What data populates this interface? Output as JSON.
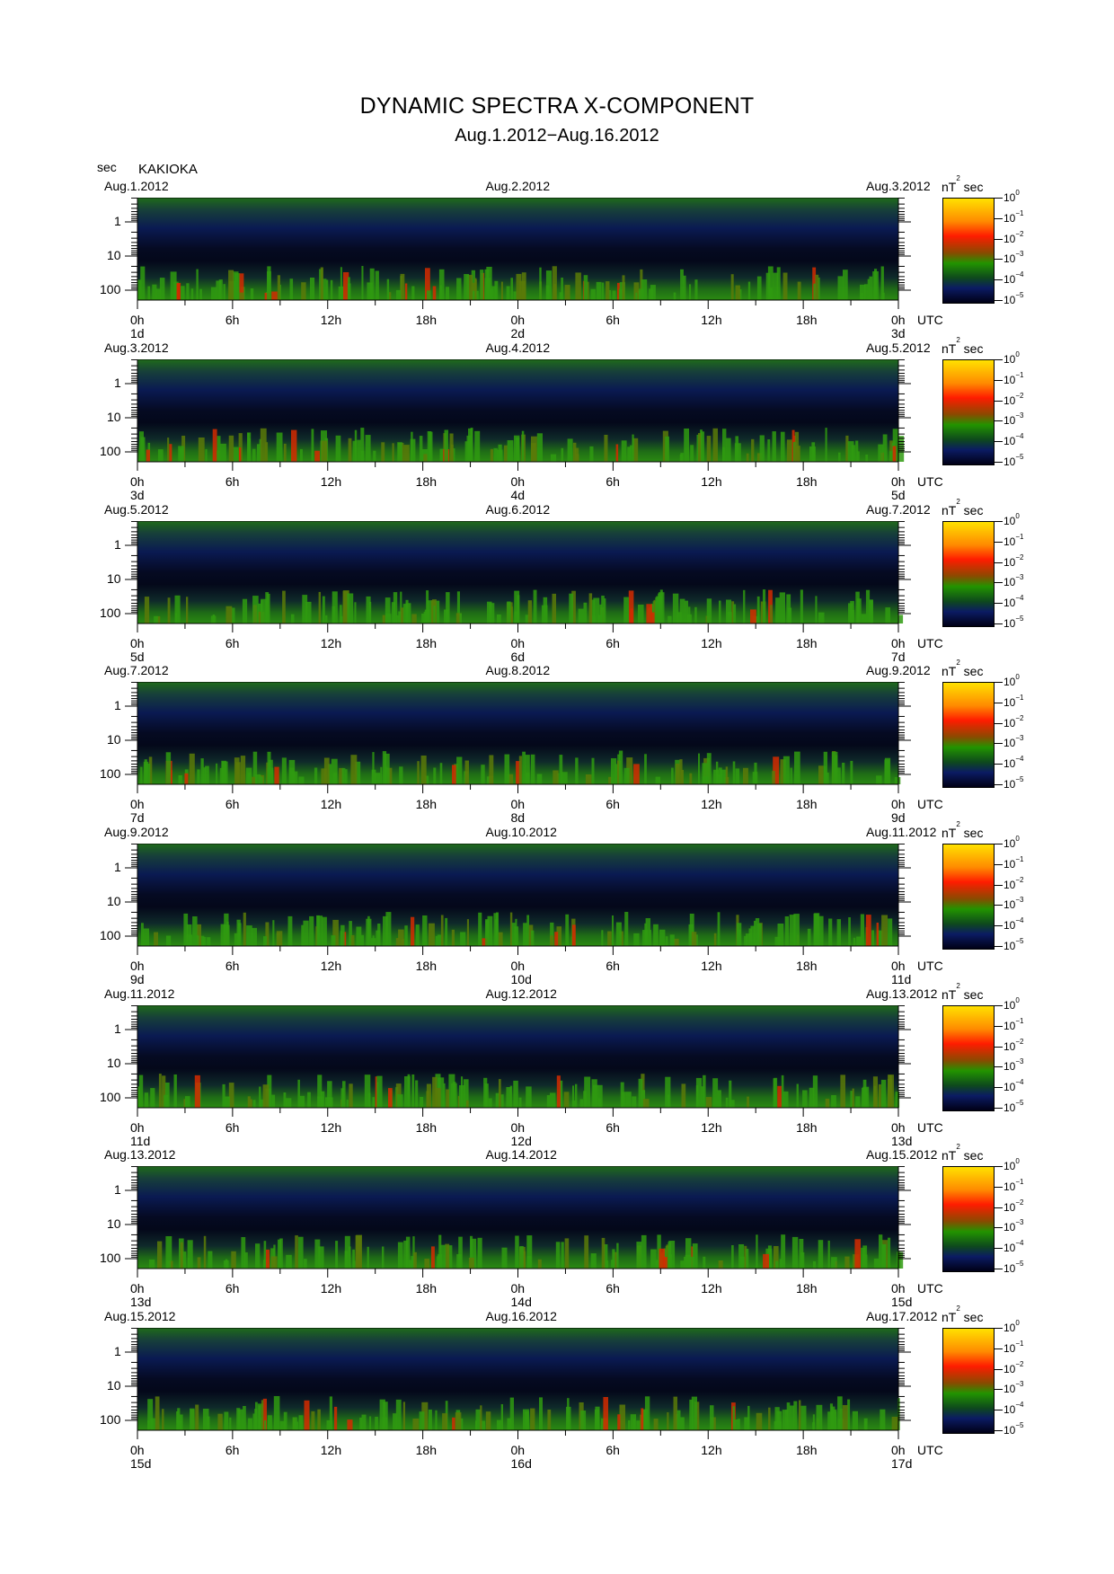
{
  "chart_data": {
    "type": "heatmap",
    "title": "DYNAMIC SPECTRA X-COMPONENT",
    "subtitle": "Aug.1.2012−Aug.16.2012",
    "station": "KAKIOKA",
    "ylabel": "sec",
    "yscale": "log",
    "y_ticks": [
      "1",
      "10",
      "100"
    ],
    "x_ticks": [
      "0h",
      "6h",
      "12h",
      "18h",
      "0h",
      "6h",
      "12h",
      "18h",
      "0h"
    ],
    "utc_label": "UTC",
    "colorbar": {
      "unit_main": "nT",
      "unit_exp": "2",
      "unit_tail": "sec",
      "scale": "log",
      "labels": [
        {
          "base": "10",
          "exp": "0"
        },
        {
          "base": "10",
          "exp": "−1"
        },
        {
          "base": "10",
          "exp": "−2"
        },
        {
          "base": "10",
          "exp": "−3"
        },
        {
          "base": "10",
          "exp": "−4"
        },
        {
          "base": "10",
          "exp": "−5"
        }
      ],
      "colors": [
        "#ffe100",
        "#ff1c00",
        "#229400",
        "#0b1b63",
        "#000016"
      ]
    },
    "panels": [
      {
        "start": "Aug.1.2012",
        "mid": "Aug.2.2012",
        "end": "Aug.3.2012",
        "d0": "1d",
        "d1": "2d",
        "d2": "3d",
        "mid_day": "day2"
      },
      {
        "start": "Aug.3.2012",
        "mid": "Aug.4.2012",
        "end": "Aug.5.2012",
        "d0": "3d",
        "d1": "4d",
        "d2": "5d"
      },
      {
        "start": "Aug.5.2012",
        "mid": "Aug.6.2012",
        "end": "Aug.7.2012",
        "d0": "5d",
        "d1": "6d",
        "d2": "7d"
      },
      {
        "start": "Aug.7.2012",
        "mid": "Aug.8.2012",
        "end": "Aug.9.2012",
        "d0": "7d",
        "d1": "8d",
        "d2": "9d"
      },
      {
        "start": "Aug.9.2012",
        "mid": "Aug.10.2012",
        "end": "Aug.11.2012",
        "d0": "9d",
        "d1": "10d",
        "d2": "11d"
      },
      {
        "start": "Aug.11.2012",
        "mid": "Aug.12.2012",
        "end": "Aug.13.2012",
        "d0": "11d",
        "d1": "12d",
        "d2": "13d"
      },
      {
        "start": "Aug.13.2012",
        "mid": "Aug.14.2012",
        "end": "Aug.15.2012",
        "d0": "13d",
        "d1": "14d",
        "d2": "15d"
      },
      {
        "start": "Aug.15.2012",
        "mid": "Aug.16.2012",
        "end": "Aug.17.2012",
        "d0": "15d",
        "d1": "16d",
        "d2": "17d"
      }
    ]
  }
}
